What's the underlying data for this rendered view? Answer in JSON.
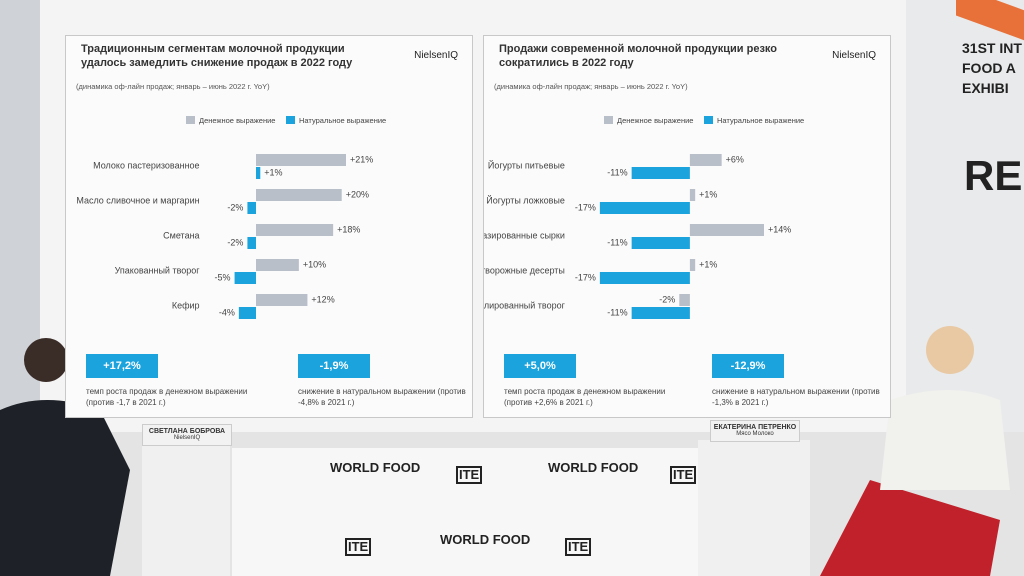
{
  "chart_data": [
    {
      "type": "bar",
      "orientation": "horizontal",
      "title": "Традиционным сегментам молочной продукции удалось замедлить снижение продаж в 2022 году",
      "subtitle": "(динамика оф-лайн продаж; январь – июнь 2022 г. YoY)",
      "logo": "NielsenIQ",
      "categories": [
        "Молоко пастеризованное",
        "Масло сливочное и маргарин",
        "Сметана",
        "Упакованный творог",
        "Кефир"
      ],
      "series": [
        {
          "name": "Денежное выражение",
          "color": "#b9bfc9",
          "values": [
            21,
            20,
            18,
            10,
            12
          ],
          "value_labels": [
            "+21%",
            "+20%",
            "+18%",
            "+10%",
            "+12%"
          ]
        },
        {
          "name": "Натуральное выражение",
          "color": "#1aa3dd",
          "values": [
            1,
            -2,
            -2,
            -5,
            -4
          ],
          "value_labels": [
            "+1%",
            "-2%",
            "-2%",
            "-5%",
            "-4%"
          ]
        }
      ],
      "callouts": [
        {
          "value": "+17,2%",
          "text": "темп роста продаж в денежном выражении (против -1,7 в 2021 г.)"
        },
        {
          "value": "-1,9%",
          "text": "снижение в натуральном выражении (против -4,8% в 2021 г.)"
        }
      ]
    },
    {
      "type": "bar",
      "orientation": "horizontal",
      "title": "Продажи современной молочной продукции резко сократились в 2022 году",
      "subtitle": "(динамика оф-лайн продаж; январь – июнь 2022 г. YoY)",
      "logo": "NielsenIQ",
      "categories": [
        "Йогурты питьевые",
        "Йогурты ложковые",
        "Глазированные сырки",
        "Густые творожные десерты",
        "Гранулированный творог"
      ],
      "series": [
        {
          "name": "Денежное выражение",
          "color": "#b9bfc9",
          "values": [
            6,
            1,
            14,
            1,
            -2
          ],
          "value_labels": [
            "+6%",
            "+1%",
            "+14%",
            "+1%",
            "-2%"
          ]
        },
        {
          "name": "Натуральное выражение",
          "color": "#1aa3dd",
          "values": [
            -11,
            -17,
            -11,
            -17,
            -11
          ],
          "value_labels": [
            "-11%",
            "-17%",
            "-11%",
            "-17%",
            "-11%"
          ]
        }
      ],
      "callouts": [
        {
          "value": "+5,0%",
          "text": "темп роста продаж в денежном выражении (против +2,6% в 2021 г.)"
        },
        {
          "value": "-12,9%",
          "text": "снижение в натуральном выражении (против -1,3% в 2021 г.)"
        }
      ]
    }
  ],
  "banner": {
    "lines": [
      "31ST INT",
      "FOOD A",
      "EXHIBI"
    ],
    "big": "RE"
  },
  "nameplates": [
    {
      "name": "СВЕТЛАНА БОБРОВА",
      "org": "NielsenIQ"
    },
    {
      "name": "ЕКАТЕРИНА ПЕТРЕНКО",
      "org": "Мясо Молоко"
    }
  ],
  "logos": {
    "world_food": "WORLD FOOD",
    "ite": "ITE"
  }
}
